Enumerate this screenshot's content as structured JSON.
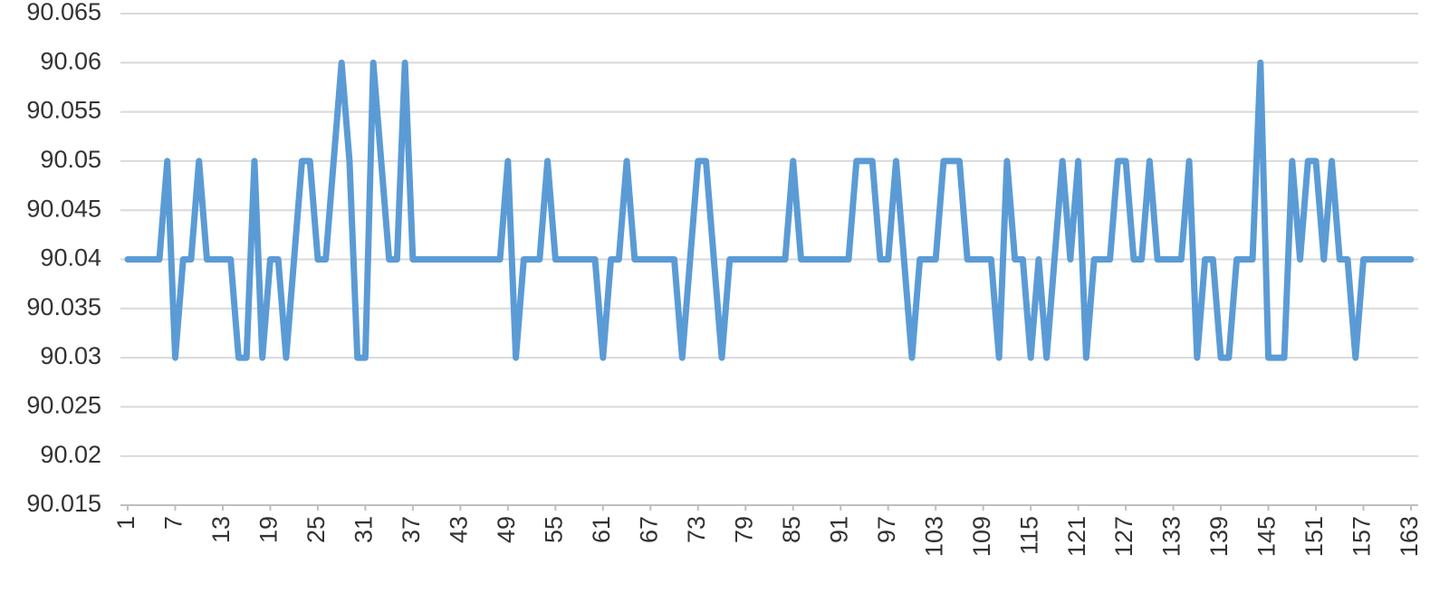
{
  "chart_data": {
    "type": "line",
    "color": "#5b9bd5",
    "grid": true,
    "x": [
      1,
      2,
      3,
      4,
      5,
      6,
      7,
      8,
      9,
      10,
      11,
      12,
      13,
      14,
      15,
      16,
      17,
      18,
      19,
      20,
      21,
      22,
      23,
      24,
      25,
      26,
      27,
      28,
      29,
      30,
      31,
      32,
      33,
      34,
      35,
      36,
      37,
      38,
      39,
      40,
      41,
      42,
      43,
      44,
      45,
      46,
      47,
      48,
      49,
      50,
      51,
      52,
      53,
      54,
      55,
      56,
      57,
      58,
      59,
      60,
      61,
      62,
      63,
      64,
      65,
      66,
      67,
      68,
      69,
      70,
      71,
      72,
      73,
      74,
      75,
      76,
      77,
      78,
      79,
      80,
      81,
      82,
      83,
      84,
      85,
      86,
      87,
      88,
      89,
      90,
      91,
      92,
      93,
      94,
      95,
      96,
      97,
      98,
      99,
      100,
      101,
      102,
      103,
      104,
      105,
      106,
      107,
      108,
      109,
      110,
      111,
      112,
      113,
      114,
      115,
      116,
      117,
      118,
      119,
      120,
      121,
      122,
      123,
      124,
      125,
      126,
      127,
      128,
      129,
      130,
      131,
      132,
      133,
      134,
      135,
      136,
      137,
      138,
      139,
      140,
      141,
      142,
      143,
      144,
      145,
      146,
      147,
      148,
      149,
      150,
      151,
      152,
      153,
      154,
      155,
      156,
      157,
      158,
      159,
      160,
      161,
      162,
      163
    ],
    "values": [
      90.04,
      90.04,
      90.04,
      90.04,
      90.04,
      90.05,
      90.03,
      90.04,
      90.04,
      90.05,
      90.04,
      90.04,
      90.04,
      90.04,
      90.03,
      90.03,
      90.05,
      90.03,
      90.04,
      90.04,
      90.03,
      90.04,
      90.05,
      90.05,
      90.04,
      90.04,
      90.05,
      90.06,
      90.05,
      90.03,
      90.03,
      90.06,
      90.05,
      90.04,
      90.04,
      90.06,
      90.04,
      90.04,
      90.04,
      90.04,
      90.04,
      90.04,
      90.04,
      90.04,
      90.04,
      90.04,
      90.04,
      90.04,
      90.05,
      90.03,
      90.04,
      90.04,
      90.04,
      90.05,
      90.04,
      90.04,
      90.04,
      90.04,
      90.04,
      90.04,
      90.03,
      90.04,
      90.04,
      90.05,
      90.04,
      90.04,
      90.04,
      90.04,
      90.04,
      90.04,
      90.03,
      90.04,
      90.05,
      90.05,
      90.04,
      90.03,
      90.04,
      90.04,
      90.04,
      90.04,
      90.04,
      90.04,
      90.04,
      90.04,
      90.05,
      90.04,
      90.04,
      90.04,
      90.04,
      90.04,
      90.04,
      90.04,
      90.05,
      90.05,
      90.05,
      90.04,
      90.04,
      90.05,
      90.04,
      90.03,
      90.04,
      90.04,
      90.04,
      90.05,
      90.05,
      90.05,
      90.04,
      90.04,
      90.04,
      90.04,
      90.03,
      90.05,
      90.04,
      90.04,
      90.03,
      90.04,
      90.03,
      90.04,
      90.05,
      90.04,
      90.05,
      90.03,
      90.04,
      90.04,
      90.04,
      90.05,
      90.05,
      90.04,
      90.04,
      90.05,
      90.04,
      90.04,
      90.04,
      90.04,
      90.05,
      90.03,
      90.04,
      90.04,
      90.03,
      90.03,
      90.04,
      90.04,
      90.04,
      90.06,
      90.03,
      90.03,
      90.03,
      90.05,
      90.04,
      90.05,
      90.05,
      90.04,
      90.05,
      90.04,
      90.04,
      90.03,
      90.04,
      90.04,
      90.04,
      90.04,
      90.04,
      90.04,
      90.04
    ],
    "xlim": [
      1,
      163
    ],
    "xticks": [
      1,
      7,
      13,
      19,
      25,
      31,
      37,
      43,
      49,
      55,
      61,
      67,
      73,
      79,
      85,
      91,
      97,
      103,
      109,
      115,
      121,
      127,
      133,
      139,
      145,
      151,
      157,
      163
    ],
    "ylim": [
      90.015,
      90.065
    ],
    "yticks": [
      90.015,
      90.02,
      90.025,
      90.03,
      90.035,
      90.04,
      90.045,
      90.05,
      90.055,
      90.06,
      90.065
    ]
  }
}
